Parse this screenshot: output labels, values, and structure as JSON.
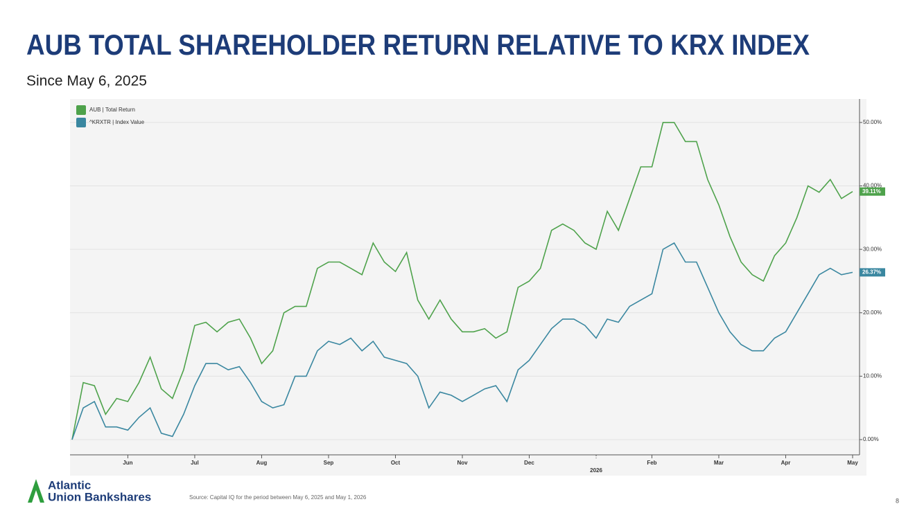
{
  "header": {
    "title": "AUB TOTAL SHAREHOLDER RETURN RELATIVE TO KRX INDEX",
    "subtitle": "Since May 6, 2025"
  },
  "footer": {
    "logo_line1": "Atlantic",
    "logo_line2": "Union Bankshares",
    "source": "Source: Capital IQ for the period between May 6, 2025 and May 1, 2026",
    "page_number": "8"
  },
  "chart_data": {
    "type": "line",
    "categories": [
      null,
      null,
      null,
      null,
      null,
      "Jun",
      null,
      null,
      null,
      null,
      null,
      "Jul",
      null,
      null,
      null,
      null,
      null,
      "Aug",
      null,
      null,
      null,
      null,
      null,
      "Sep",
      null,
      null,
      null,
      null,
      null,
      "Oct",
      null,
      null,
      null,
      null,
      null,
      "Nov",
      null,
      null,
      null,
      null,
      null,
      "Dec",
      null,
      null,
      null,
      null,
      null,
      "2026",
      null,
      null,
      null,
      null,
      "Feb",
      null,
      null,
      null,
      null,
      null,
      "Mar",
      null,
      null,
      null,
      null,
      null,
      "Apr",
      null,
      null,
      null,
      null,
      null,
      "May"
    ],
    "series": [
      {
        "name": "AUB | Total Return",
        "color": "#4ea24b",
        "last_value_label": "39.11%",
        "values": [
          0,
          9,
          8.5,
          4,
          6.5,
          6,
          9,
          13,
          8,
          6.5,
          11,
          18,
          18.5,
          17,
          18.5,
          19,
          16,
          12,
          14,
          20,
          21,
          21,
          27,
          28,
          28,
          27,
          26,
          31,
          28,
          26.5,
          29.5,
          22,
          19,
          22,
          19,
          17,
          17,
          17.5,
          16,
          17,
          24,
          25,
          27,
          33,
          34,
          33,
          31,
          30,
          36,
          33,
          38,
          43,
          43,
          50,
          50,
          47,
          47,
          41,
          37,
          32,
          28,
          26,
          25,
          29,
          31,
          35,
          40,
          39,
          41,
          38,
          39.11
        ]
      },
      {
        "name": "^KRXTR | Index Value",
        "color": "#3a87a0",
        "last_value_label": "26.37%",
        "values": [
          0,
          5,
          6,
          2,
          2,
          1.5,
          3.5,
          5,
          1,
          0.5,
          4,
          8.5,
          12,
          12,
          11,
          11.5,
          9,
          6,
          5,
          5.5,
          10,
          10,
          14,
          15.5,
          15,
          16,
          14,
          15.5,
          13,
          12.5,
          12,
          10,
          5,
          7.5,
          7,
          6,
          7,
          8,
          8.5,
          6,
          11,
          12.5,
          15,
          17.5,
          19,
          19,
          18,
          16,
          19,
          18.5,
          21,
          22,
          23,
          30,
          31,
          28,
          28,
          24,
          20,
          17,
          15,
          14,
          14,
          16,
          17,
          20,
          23,
          26,
          27,
          26,
          26.37
        ]
      }
    ],
    "ylim": [
      -2.4,
      53.7
    ],
    "yticks": [
      {
        "value": 0,
        "label": "0.00%"
      },
      {
        "value": 10,
        "label": "10.00%"
      },
      {
        "value": 20,
        "label": "20.00%"
      },
      {
        "value": 30,
        "label": "30.00%"
      },
      {
        "value": 40,
        "label": "40.00%"
      },
      {
        "value": 50,
        "label": "50.00%"
      }
    ],
    "grid": true,
    "legend": "top-left"
  }
}
